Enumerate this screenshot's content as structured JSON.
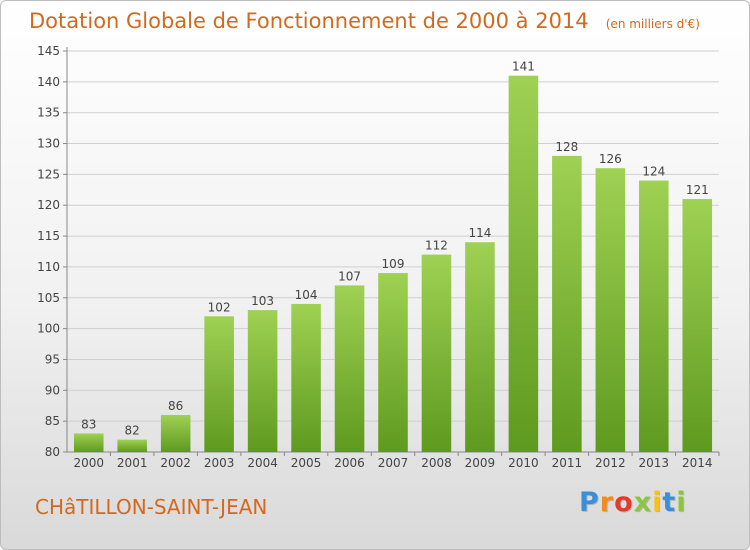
{
  "chart_data": {
    "type": "bar",
    "title": "Dotation Globale de Fonctionnement de 2000 à 2014",
    "unit_label": "(en milliers d'€)",
    "categories": [
      "2000",
      "2001",
      "2002",
      "2003",
      "2004",
      "2005",
      "2006",
      "2007",
      "2008",
      "2009",
      "2010",
      "2011",
      "2012",
      "2013",
      "2014"
    ],
    "values": [
      83,
      82,
      86,
      102,
      103,
      104,
      107,
      109,
      112,
      114,
      141,
      128,
      126,
      124,
      121
    ],
    "ylim": [
      80,
      145
    ],
    "yticks": [
      80,
      85,
      90,
      95,
      100,
      105,
      110,
      115,
      120,
      125,
      130,
      135,
      140,
      145
    ],
    "grid": true,
    "bar_color": "#7dbb3a"
  },
  "footer": {
    "commune": "CHâTILLON-SAINT-JEAN",
    "brand_letters": [
      {
        "ch": "P",
        "color": "#3b8fd6"
      },
      {
        "ch": "r",
        "color": "#f28c1e"
      },
      {
        "ch": "o",
        "color": "#e33b2e"
      },
      {
        "ch": "x",
        "color": "#8cc63f"
      },
      {
        "ch": "i",
        "color": "#f4c21a"
      },
      {
        "ch": "t",
        "color": "#3b8fd6"
      },
      {
        "ch": "i",
        "color": "#8cc63f"
      }
    ]
  }
}
